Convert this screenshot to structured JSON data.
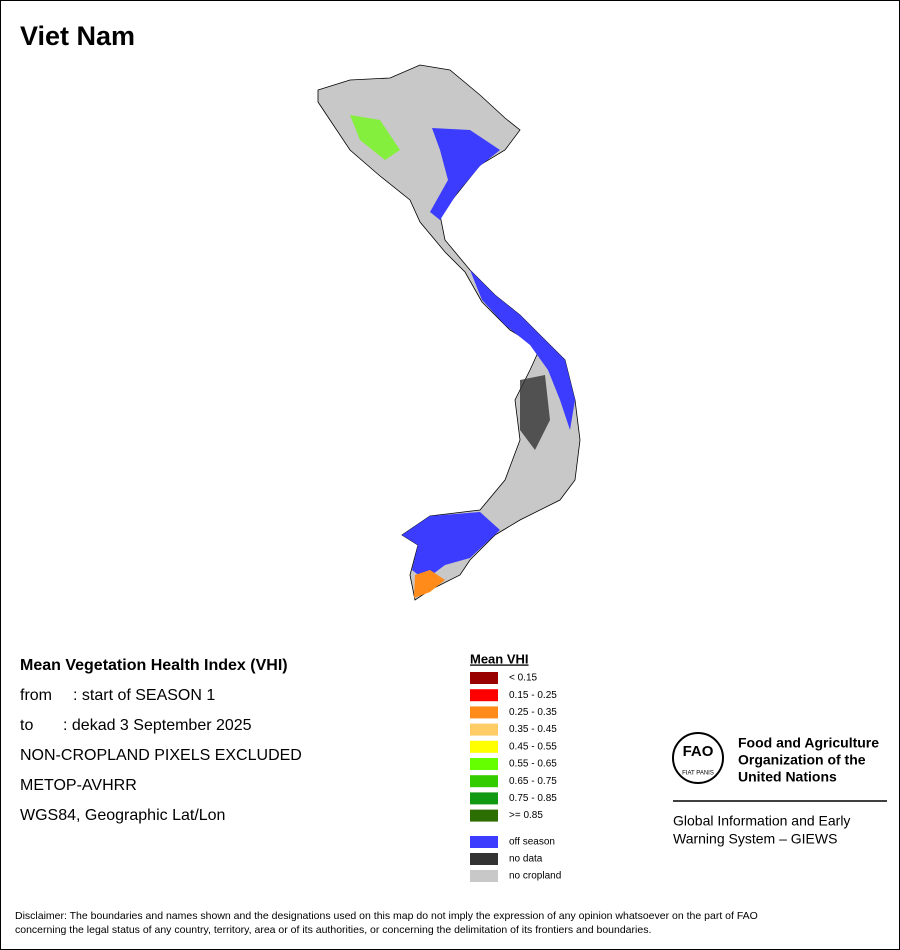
{
  "title": "Viet Nam",
  "info": {
    "heading": "Mean Vegetation Health Index (VHI)",
    "lines": [
      {
        "label": "from",
        "value": ": start of SEASON 1"
      },
      {
        "label": "to",
        "value": ": dekad 3 September 2025"
      },
      {
        "value": "NON-CROPLAND PIXELS EXCLUDED"
      },
      {
        "value": "METOP-AVHRR"
      },
      {
        "value": "WGS84, Geographic Lat/Lon"
      }
    ]
  },
  "legend": {
    "title": "Mean VHI",
    "classes": [
      {
        "label": "< 0.15",
        "color": "#990000"
      },
      {
        "label": "0.15 - 0.25",
        "color": "#ff0000"
      },
      {
        "label": "0.25 - 0.35",
        "color": "#ff8c1a"
      },
      {
        "label": "0.35 - 0.45",
        "color": "#ffcc66"
      },
      {
        "label": "0.45 - 0.55",
        "color": "#ffff00"
      },
      {
        "label": "0.55 - 0.65",
        "color": "#66ff00"
      },
      {
        "label": "0.65 - 0.75",
        "color": "#33cc00"
      },
      {
        "label": "0.75 - 0.85",
        "color": "#119911"
      },
      {
        "label": ">= 0.85",
        "color": "#2d6e00"
      }
    ],
    "extra": [
      {
        "label": "off season",
        "color": "#3c3cff"
      },
      {
        "label": "no data",
        "color": "#333333"
      },
      {
        "label": "no cropland",
        "color": "#c8c8c8"
      }
    ]
  },
  "logo": {
    "emblem": "FAO",
    "motto": "FIAT PANIS",
    "organization": [
      "Food and Agriculture",
      "Organization of the",
      "United Nations"
    ],
    "system": [
      "Global Information and Early",
      "Warning System – GIEWS"
    ]
  },
  "disclaimer": [
    "Disclaimer: The boundaries and names shown and the designations used on this map do not imply the expression of any opinion whatsoever on the part of FAO",
    "concerning the legal status of any country, territory, area or of its authorities, or concerning the delimitation of its frontiers and boundaries."
  ]
}
